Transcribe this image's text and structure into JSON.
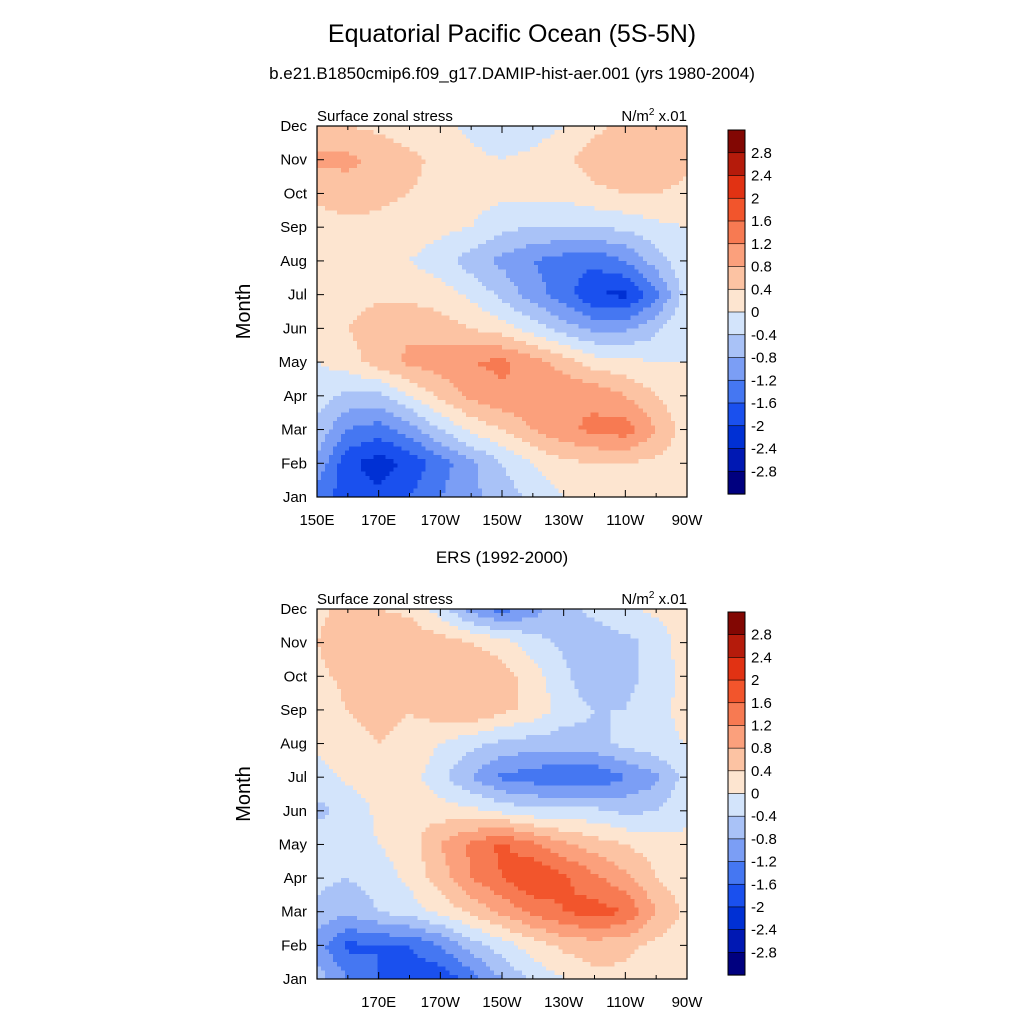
{
  "title": "Equatorial Pacific Ocean (5S-5N)",
  "subtitle": "b.e21.B1850cmip6.f09_g17.DAMIP-hist-aer.001 (yrs 1980-2004)",
  "colors": [
    "#00007f",
    "#0018b3",
    "#0030d4",
    "#1a50ee",
    "#4577f2",
    "#7b9ef5",
    "#a9c2f7",
    "#d3e4fb",
    "#fde5d0",
    "#fcc3a3",
    "#fba07c",
    "#f77a52",
    "#f2552c",
    "#e13213",
    "#b51b0b",
    "#820703"
  ],
  "colorbar_labels": [
    "2.8",
    "2.4",
    "2",
    "1.6",
    "1.2",
    "0.8",
    "0.4",
    "0",
    "-0.4",
    "-0.8",
    "-1.2",
    "-1.6",
    "-2",
    "-2.4",
    "-2.8"
  ],
  "chart_data": [
    {
      "type": "heatmap",
      "panel_title": "",
      "left_label": "Surface zonal stress",
      "right_label": "N/m",
      "right_label_sup": "2",
      "right_label_suffix": " x.01",
      "ylabel": "Month",
      "xlabel": "",
      "xlim": [
        150,
        270
      ],
      "x_ticks": [
        150,
        170,
        190,
        210,
        230,
        250,
        270
      ],
      "x_tick_labels": [
        "150E",
        "170E",
        "170W",
        "150W",
        "130W",
        "110W",
        "90W"
      ],
      "y_tick_labels": [
        "Jan",
        "Feb",
        "Mar",
        "Apr",
        "May",
        "Jun",
        "Jul",
        "Aug",
        "Sep",
        "Oct",
        "Nov",
        "Dec"
      ],
      "levels": [
        -2.8,
        -2.4,
        -2.0,
        -1.6,
        -1.2,
        -0.8,
        -0.4,
        0,
        0.4,
        0.8,
        1.2,
        1.6,
        2.0,
        2.4,
        2.8
      ],
      "x": [
        150,
        160,
        170,
        180,
        190,
        200,
        210,
        220,
        230,
        240,
        250,
        260,
        270
      ],
      "values": [
        [
          -1.4,
          -1.8,
          -1.9,
          -1.6,
          -1.2,
          -0.9,
          -0.6,
          -0.3,
          0.0,
          0.2,
          0.2,
          0.2,
          0.1
        ],
        [
          -0.9,
          -1.9,
          -2.2,
          -1.9,
          -1.4,
          -0.9,
          -0.4,
          0.0,
          0.3,
          0.4,
          0.4,
          0.3,
          0.1
        ],
        [
          -0.5,
          -1.2,
          -1.4,
          -1.0,
          -0.4,
          0.1,
          0.4,
          0.8,
          1.1,
          1.3,
          1.4,
          0.8,
          0.2
        ],
        [
          -0.2,
          -0.5,
          -0.5,
          0.0,
          0.5,
          0.9,
          1.1,
          1.2,
          1.2,
          1.1,
          0.8,
          0.4,
          0.1
        ],
        [
          0.0,
          0.2,
          0.6,
          0.9,
          1.0,
          1.2,
          1.3,
          1.0,
          0.6,
          0.2,
          0.1,
          0.0,
          0.0
        ],
        [
          0.1,
          0.4,
          0.7,
          0.7,
          0.6,
          0.4,
          0.2,
          -0.2,
          -0.6,
          -0.9,
          -0.9,
          -0.5,
          0.0
        ],
        [
          0.0,
          0.2,
          0.3,
          0.3,
          0.2,
          -0.1,
          -0.5,
          -1.0,
          -1.4,
          -2.0,
          -2.1,
          -1.3,
          -0.2
        ],
        [
          0.1,
          0.1,
          0.1,
          0.0,
          -0.2,
          -0.6,
          -0.9,
          -1.2,
          -1.4,
          -1.5,
          -1.2,
          -0.6,
          -0.1
        ],
        [
          0.2,
          0.3,
          0.3,
          0.2,
          0.1,
          0.0,
          -0.3,
          -0.4,
          -0.4,
          -0.4,
          -0.3,
          -0.1,
          0.0
        ],
        [
          0.5,
          0.6,
          0.5,
          0.4,
          0.3,
          0.2,
          0.1,
          0.1,
          0.1,
          0.3,
          0.4,
          0.4,
          0.3
        ],
        [
          0.9,
          0.9,
          0.7,
          0.5,
          0.3,
          0.1,
          0.0,
          0.1,
          0.3,
          0.6,
          0.7,
          0.7,
          0.5
        ],
        [
          0.5,
          0.4,
          0.3,
          0.2,
          0.1,
          -0.1,
          -0.3,
          -0.2,
          0.0,
          0.3,
          0.5,
          0.5,
          0.4
        ]
      ]
    },
    {
      "type": "heatmap",
      "panel_title": "ERS (1992-2000)",
      "left_label": "Surface zonal stress",
      "right_label": "N/m",
      "right_label_sup": "2",
      "right_label_suffix": " x.01",
      "ylabel": "Month",
      "xlabel": "",
      "xlim": [
        150,
        270
      ],
      "x_ticks": [
        170,
        190,
        210,
        230,
        250,
        270
      ],
      "x_tick_labels": [
        "170E",
        "170W",
        "150W",
        "130W",
        "110W",
        "90W"
      ],
      "y_tick_labels": [
        "Jan",
        "Feb",
        "Mar",
        "Apr",
        "May",
        "Jun",
        "Jul",
        "Aug",
        "Sep",
        "Oct",
        "Nov",
        "Dec"
      ],
      "levels": [
        -2.8,
        -2.4,
        -2.0,
        -1.6,
        -1.2,
        -0.8,
        -0.4,
        0,
        0.4,
        0.8,
        1.2,
        1.6,
        2.0,
        2.4,
        2.8
      ],
      "x": [
        150,
        160,
        170,
        180,
        190,
        200,
        210,
        220,
        230,
        240,
        250,
        260,
        270
      ],
      "values": [
        [
          -0.6,
          -1.2,
          -1.6,
          -1.8,
          -1.9,
          -1.4,
          -0.8,
          -0.3,
          0.0,
          0.3,
          0.3,
          0.2,
          0.1
        ],
        [
          -1.0,
          -1.7,
          -1.6,
          -1.6,
          -1.2,
          -0.6,
          -0.2,
          0.2,
          0.5,
          0.6,
          0.5,
          0.3,
          0.1
        ],
        [
          -0.5,
          -0.7,
          -0.4,
          -0.2,
          0.1,
          0.5,
          0.9,
          1.3,
          1.6,
          1.8,
          1.6,
          0.8,
          0.3
        ],
        [
          -0.3,
          -0.4,
          -0.2,
          0.1,
          0.6,
          1.2,
          1.6,
          2.0,
          1.7,
          1.3,
          0.9,
          0.4,
          0.1
        ],
        [
          -0.2,
          -0.2,
          0.0,
          0.2,
          0.8,
          1.3,
          1.7,
          1.3,
          0.9,
          0.6,
          0.4,
          0.2,
          0.1
        ],
        [
          -0.5,
          -0.3,
          0.1,
          0.3,
          0.2,
          0.1,
          -0.1,
          -0.3,
          -0.3,
          -0.3,
          -0.5,
          -0.4,
          -0.1
        ],
        [
          -0.2,
          0.1,
          0.2,
          0.2,
          -0.3,
          -0.8,
          -1.3,
          -1.4,
          -1.6,
          -1.6,
          -1.2,
          -0.9,
          -0.2
        ],
        [
          0.1,
          0.3,
          0.4,
          0.3,
          0.0,
          -0.3,
          -0.5,
          -0.6,
          -0.6,
          -0.5,
          -0.3,
          -0.1,
          0.0
        ],
        [
          0.2,
          0.4,
          0.5,
          0.4,
          0.6,
          0.8,
          0.5,
          0.3,
          -0.2,
          -0.4,
          -0.4,
          -0.2,
          0.2
        ],
        [
          0.3,
          0.5,
          0.5,
          0.4,
          0.6,
          0.7,
          0.6,
          0.2,
          -0.3,
          -0.7,
          -0.5,
          -0.3,
          0.2
        ],
        [
          0.4,
          0.7,
          0.8,
          0.7,
          0.6,
          0.4,
          0.2,
          -0.2,
          -0.5,
          -0.6,
          -0.5,
          -0.3,
          0.3
        ],
        [
          0.3,
          0.5,
          0.4,
          0.3,
          -0.2,
          -1.0,
          -1.4,
          -1.0,
          -0.5,
          -0.3,
          -0.1,
          0.1,
          0.2
        ]
      ]
    }
  ]
}
